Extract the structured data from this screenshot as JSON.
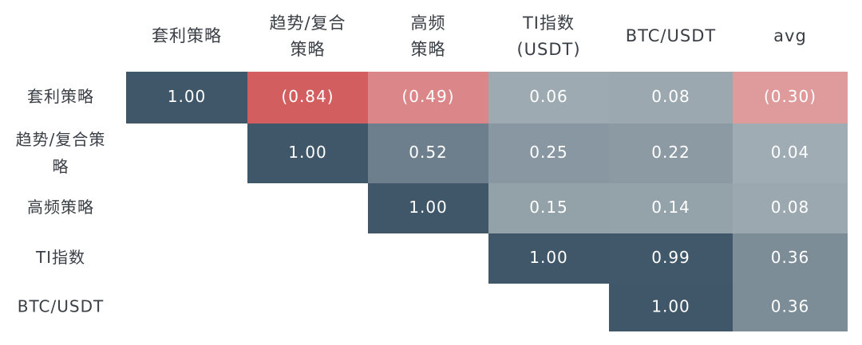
{
  "chart_data": {
    "type": "heatmap",
    "columns": [
      {
        "lines": [
          "套利策略"
        ]
      },
      {
        "lines": [
          "趋势/复合",
          "策略"
        ]
      },
      {
        "lines": [
          "高频",
          "策略"
        ]
      },
      {
        "lines": [
          "TI指数",
          "(USDT)"
        ]
      },
      {
        "lines": [
          "BTC/USDT"
        ]
      },
      {
        "lines": [
          "avg"
        ]
      }
    ],
    "rows": [
      {
        "lines": [
          "套利策略"
        ]
      },
      {
        "lines": [
          "趋势/复合策",
          "略"
        ]
      },
      {
        "lines": [
          "高频策略"
        ]
      },
      {
        "lines": [
          "TI指数"
        ]
      },
      {
        "lines": [
          "BTC/USDT"
        ]
      }
    ],
    "cells": [
      [
        {
          "value": 1.0,
          "label": "1.00"
        },
        {
          "value": -0.84,
          "label": "(0.84)"
        },
        {
          "value": -0.49,
          "label": "(0.49)"
        },
        {
          "value": 0.06,
          "label": "0.06"
        },
        {
          "value": 0.08,
          "label": "0.08"
        },
        {
          "value": -0.3,
          "label": "(0.30)"
        }
      ],
      [
        null,
        {
          "value": 1.0,
          "label": "1.00"
        },
        {
          "value": 0.52,
          "label": "0.52"
        },
        {
          "value": 0.25,
          "label": "0.25"
        },
        {
          "value": 0.22,
          "label": "0.22"
        },
        {
          "value": 0.04,
          "label": "0.04"
        }
      ],
      [
        null,
        null,
        {
          "value": 1.0,
          "label": "1.00"
        },
        {
          "value": 0.15,
          "label": "0.15"
        },
        {
          "value": 0.14,
          "label": "0.14"
        },
        {
          "value": 0.08,
          "label": "0.08"
        }
      ],
      [
        null,
        null,
        null,
        {
          "value": 1.0,
          "label": "1.00"
        },
        {
          "value": 0.99,
          "label": "0.99"
        },
        {
          "value": 0.36,
          "label": "0.36"
        }
      ],
      [
        null,
        null,
        null,
        null,
        {
          "value": 1.0,
          "label": "1.00"
        },
        {
          "value": 0.36,
          "label": "0.36"
        }
      ]
    ],
    "colors": {
      "dark": "#3f5768",
      "neutral": "#a6b1b8",
      "negative": "#d35e60",
      "text_on_dark": "#ffffff",
      "text_on_light": "#ffffff"
    }
  }
}
